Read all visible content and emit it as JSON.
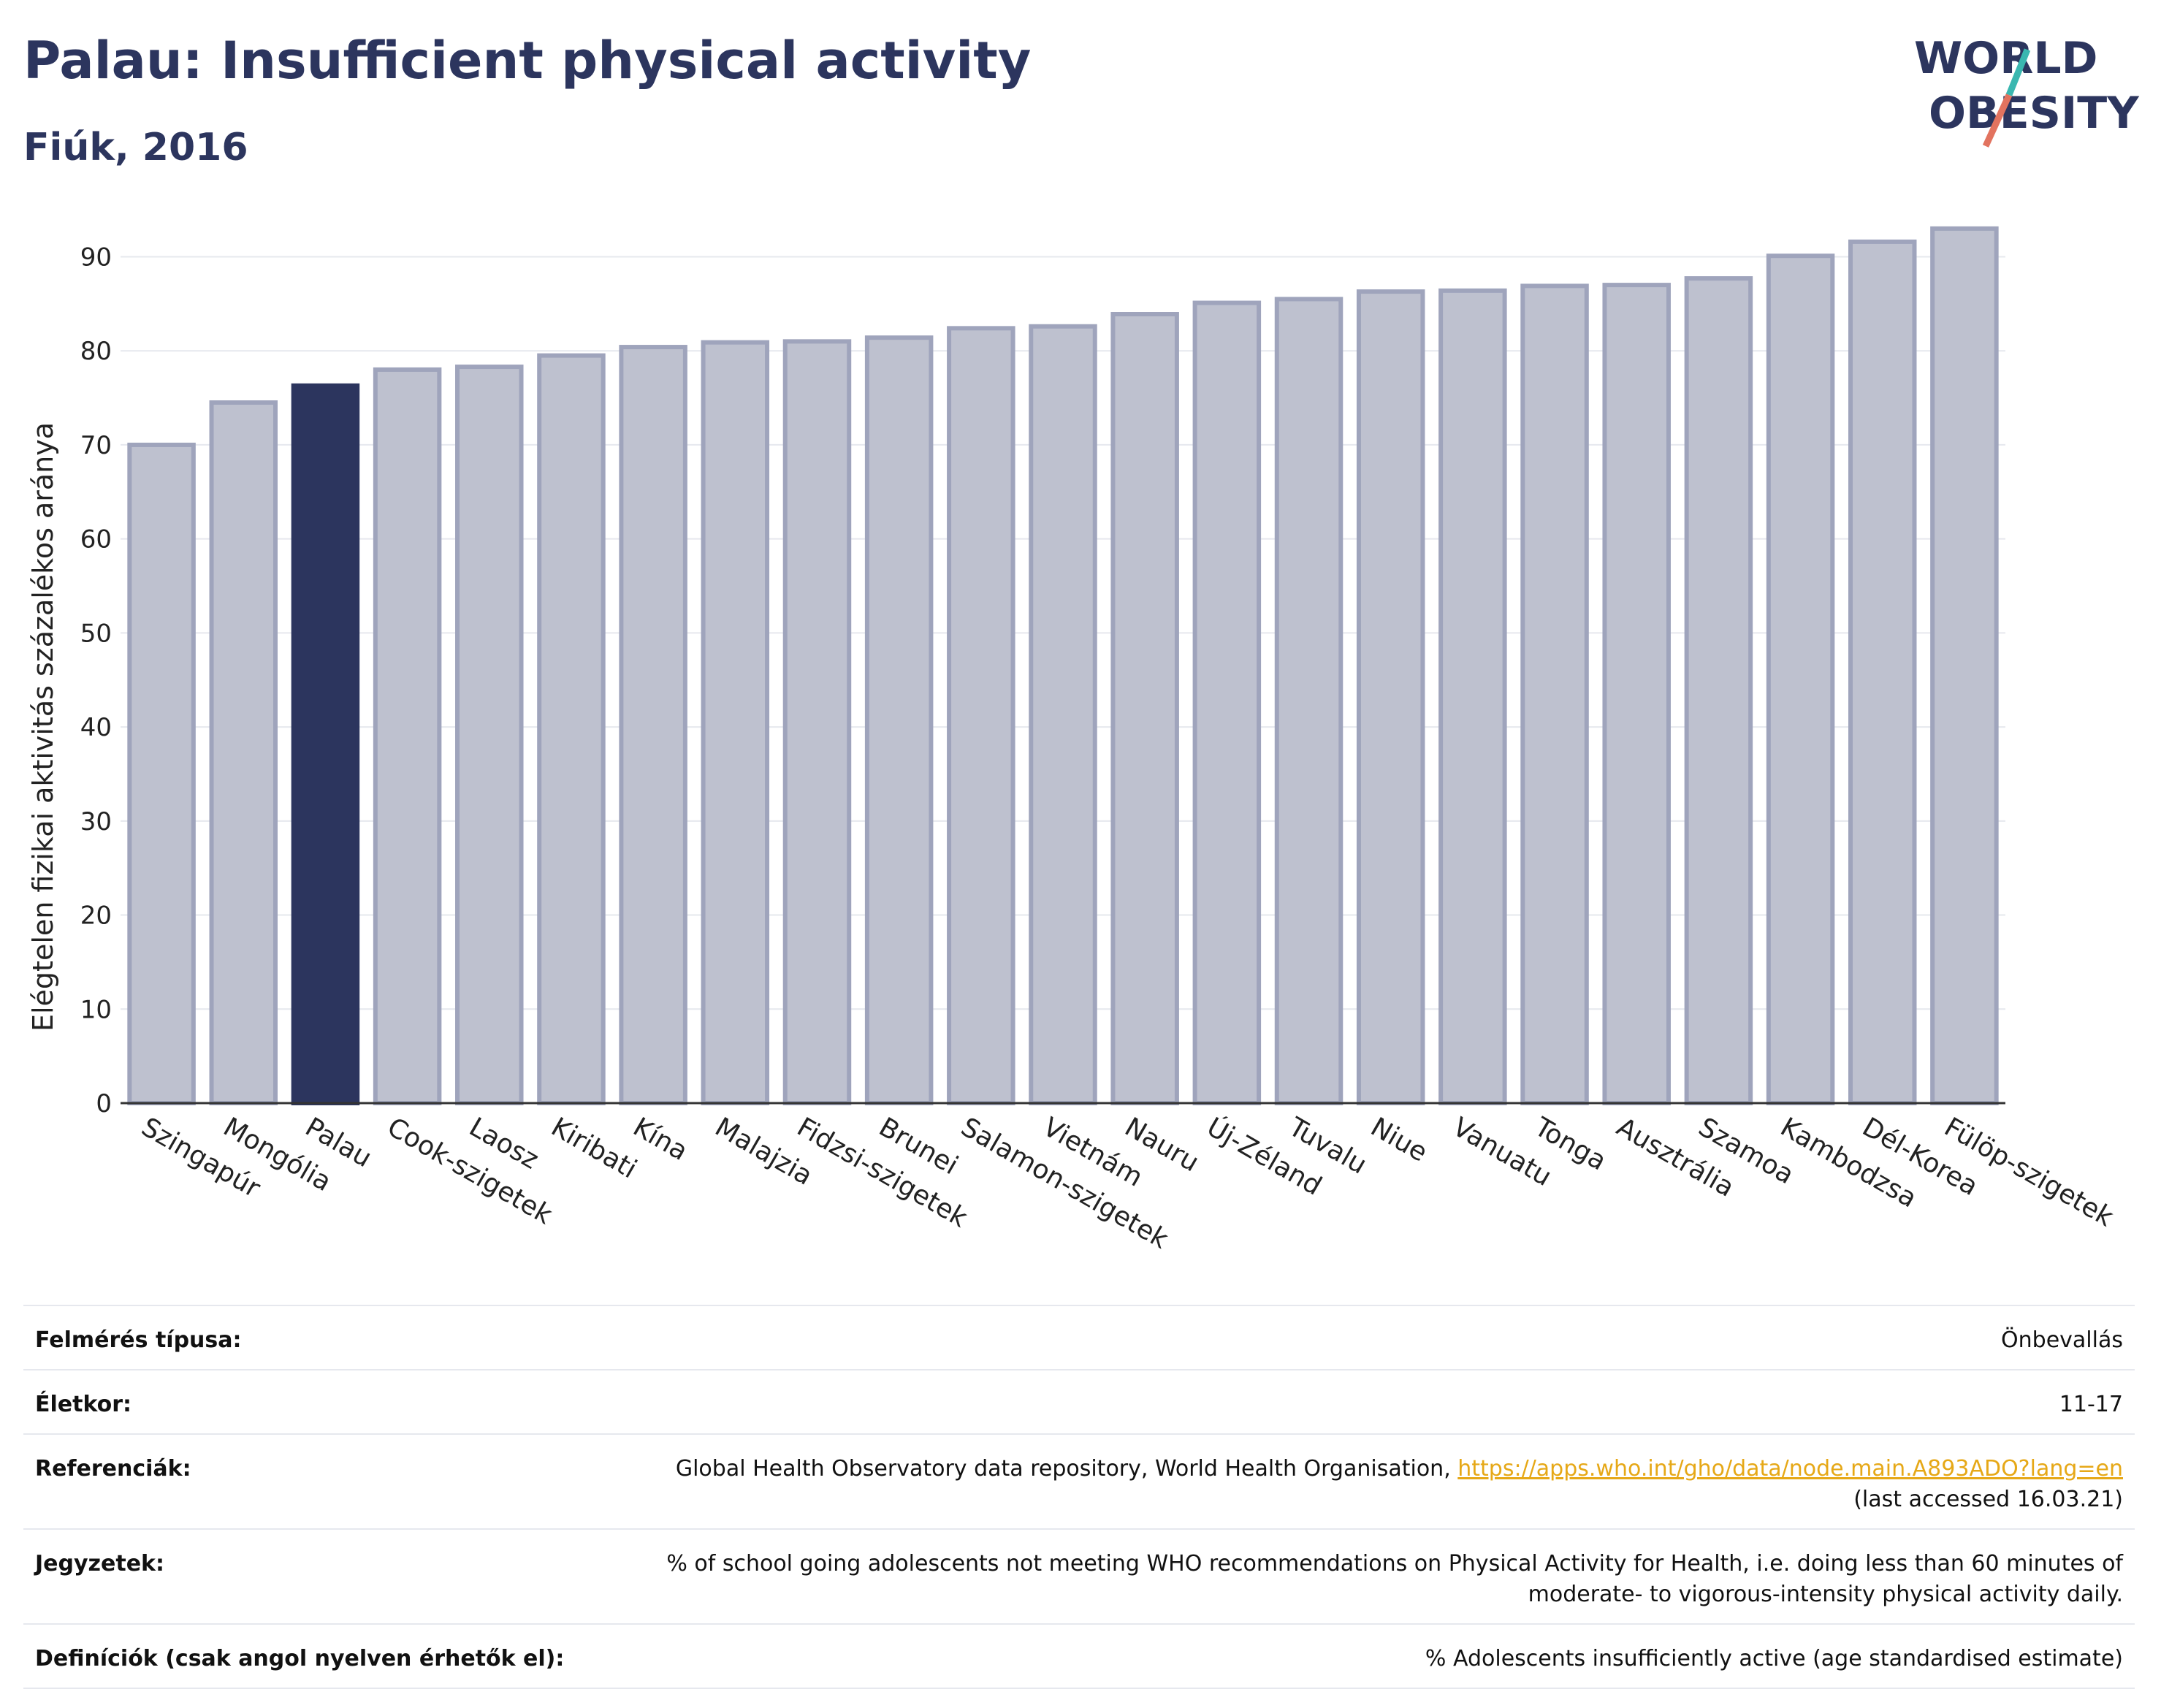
{
  "title": "Palau: Insufficient physical activity",
  "subtitle": "Fiúk, 2016",
  "logo": {
    "line1": "WORLD",
    "line2": "OBESITY"
  },
  "colors": {
    "highlight": "#2c355e",
    "bar": "#bec1cf",
    "bar_edge": "#9fa4bc",
    "title": "#2c355e",
    "link": "#e6a817"
  },
  "chart_data": {
    "type": "bar",
    "ylabel": "Elégtelen fizikai aktivitás százalékos aránya",
    "ylim": [
      0,
      94
    ],
    "yticks": [
      0,
      10,
      20,
      30,
      40,
      50,
      60,
      70,
      80,
      90
    ],
    "grid": true,
    "highlight": "Palau",
    "categories": [
      "Szingapúr",
      "Mongólia",
      "Palau",
      "Cook-szigetek",
      "Laosz",
      "Kiribati",
      "Kína",
      "Malajzia",
      "Fidzsi-szigetek",
      "Brunei",
      "Salamon-szigetek",
      "Vietnám",
      "Nauru",
      "Új-Zéland",
      "Tuvalu",
      "Niue",
      "Vanuatu",
      "Tonga",
      "Ausztrália",
      "Szamoa",
      "Kambodzsa",
      "Dél-Korea",
      "Fülöp-szigetek"
    ],
    "values": [
      70.0,
      74.5,
      76.3,
      78.0,
      78.3,
      79.5,
      80.4,
      80.9,
      81.0,
      81.4,
      82.4,
      82.6,
      83.9,
      85.1,
      85.5,
      86.3,
      86.4,
      86.9,
      87.0,
      87.7,
      90.1,
      91.6,
      93.0
    ]
  },
  "info": {
    "survey_label": "Felmérés típusa:",
    "survey_value": "Önbevallás",
    "age_label": "Életkor:",
    "age_value": "11-17",
    "ref_label": "Referenciák:",
    "ref_text": "Global Health Observatory data repository, World Health Organisation, ",
    "ref_link": "https://apps.who.int/gho/data/node.main.A893ADO?lang=en",
    "ref_accessed": "(last accessed 16.03.21)",
    "notes_label": "Jegyzetek:",
    "notes_line1": "% of school going adolescents not meeting WHO recommendations on Physical Activity for Health, i.e. doing less than 60 minutes of",
    "notes_line2": "moderate- to vigorous-intensity physical activity daily.",
    "def_label": "Definíciók (csak angol nyelven érhetők el):",
    "def_value": "% Adolescents insufficiently active (age standardised estimate)"
  }
}
